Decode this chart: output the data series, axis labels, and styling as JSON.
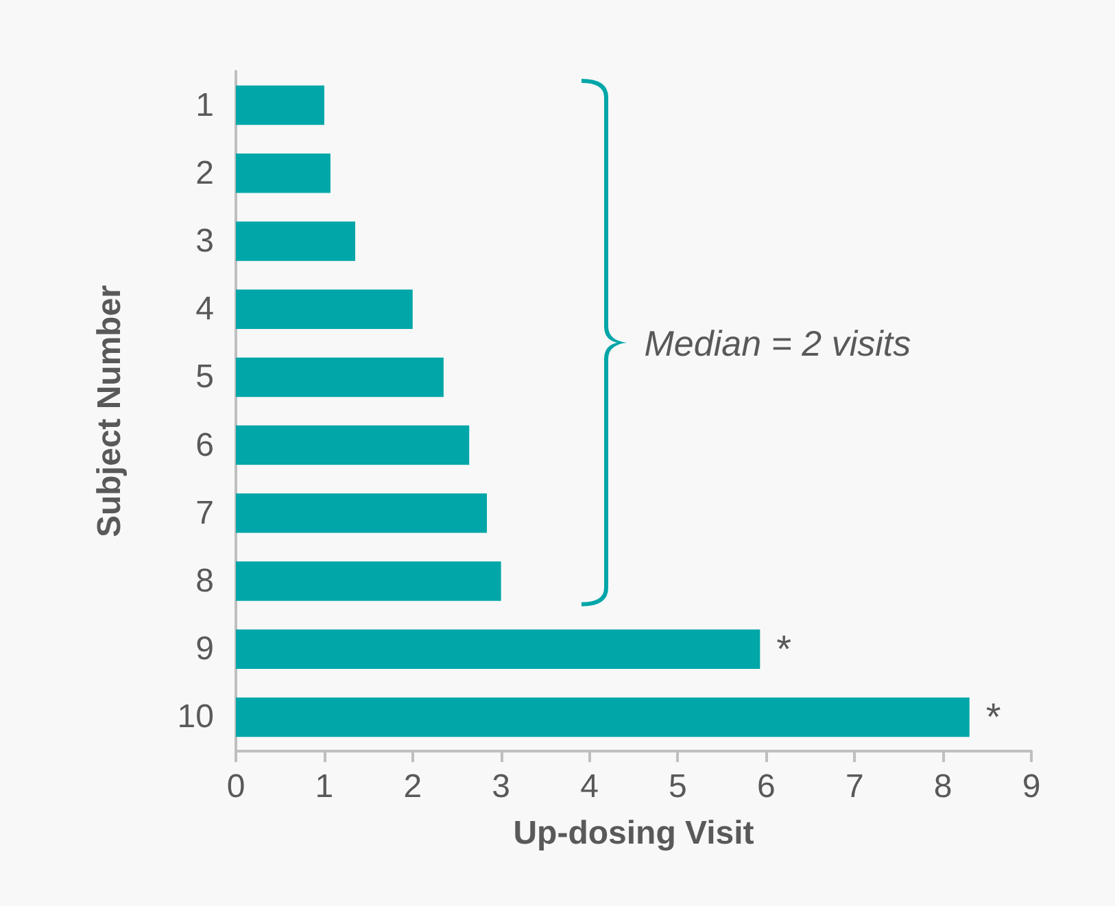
{
  "chart_data": {
    "type": "bar",
    "orientation": "horizontal",
    "categories": [
      "1",
      "2",
      "3",
      "4",
      "5",
      "6",
      "7",
      "8",
      "9",
      "10"
    ],
    "values": [
      1.0,
      1.07,
      1.35,
      2.0,
      2.35,
      2.64,
      2.84,
      3.0,
      5.93,
      8.3
    ],
    "color": "#00a6a8",
    "xlim": [
      0,
      9
    ],
    "xticks": [
      0,
      1,
      2,
      3,
      4,
      5,
      6,
      7,
      8,
      9
    ],
    "xlabel": "Up-dosing Visit",
    "ylabel": "Subject Number",
    "grid": false,
    "annotations": [
      "Median = 2 visits",
      {
        "text": "*",
        "x": 5.93,
        "y": "9"
      },
      {
        "text": "*",
        "x": 8.3,
        "y": "10"
      }
    ]
  }
}
